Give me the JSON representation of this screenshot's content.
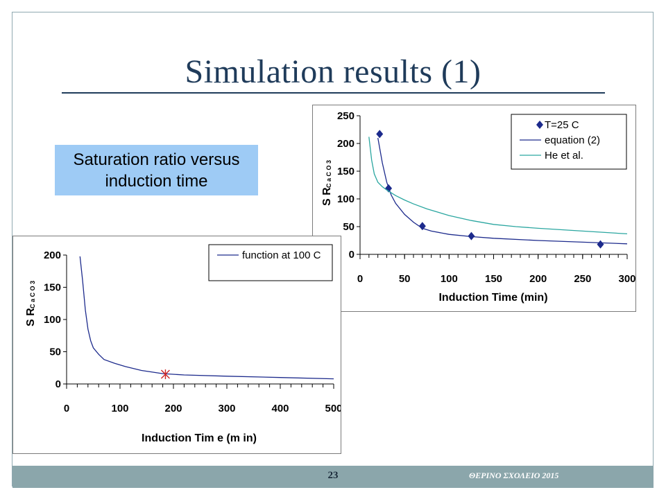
{
  "slide": {
    "title": "Simulation results (1)",
    "caption_line1": "Saturation ratio versus",
    "caption_line2": "induction time",
    "page_number": "23",
    "footer_text": "ΘΕΡΙΝΟ ΣΧΟΛΕΙΟ 2015"
  },
  "colors": {
    "title": "#1f3b5a",
    "caption_bg": "#9ecbf5",
    "footer_bg": "#8ba6ab",
    "series_navy": "#1c2a8c",
    "series_teal": "#2aa6a0",
    "marker_red": "#cc2222"
  },
  "chart_data": [
    {
      "type": "line",
      "xlabel": "Induction Time (min)",
      "ylabel": "S R",
      "ylabel_sub": "C a C O 3",
      "xlim": [
        0,
        300
      ],
      "ylim": [
        0,
        250
      ],
      "xticks": [
        0,
        50,
        100,
        150,
        200,
        250,
        300
      ],
      "yticks": [
        0,
        50,
        100,
        150,
        200,
        250
      ],
      "legend_position": "top-right",
      "series": [
        {
          "name": "T=25 C",
          "style": "diamond-markers",
          "color": "#1c2a8c",
          "points": [
            [
              22,
              217
            ],
            [
              32,
              119
            ],
            [
              70,
              51
            ],
            [
              125,
              33
            ],
            [
              270,
              18
            ]
          ]
        },
        {
          "name": "equation (2)",
          "style": "line",
          "color": "#1c2a8c",
          "points": [
            [
              20,
              210
            ],
            [
              25,
              165
            ],
            [
              30,
              130
            ],
            [
              35,
              107
            ],
            [
              40,
              92
            ],
            [
              50,
              72
            ],
            [
              60,
              58
            ],
            [
              70,
              47
            ],
            [
              80,
              42
            ],
            [
              100,
              36
            ],
            [
              125,
              32
            ],
            [
              150,
              29
            ],
            [
              200,
              25
            ],
            [
              250,
              22
            ],
            [
              300,
              19
            ]
          ]
        },
        {
          "name": "He et al.",
          "style": "line",
          "color": "#2aa6a0",
          "points": [
            [
              10,
              212
            ],
            [
              13,
              170
            ],
            [
              16,
              145
            ],
            [
              20,
              130
            ],
            [
              25,
              122
            ],
            [
              30,
              116
            ],
            [
              40,
              106
            ],
            [
              50,
              98
            ],
            [
              60,
              91
            ],
            [
              75,
              82
            ],
            [
              100,
              70
            ],
            [
              125,
              61
            ],
            [
              150,
              54
            ],
            [
              175,
              50
            ],
            [
              200,
              47
            ],
            [
              250,
              42
            ],
            [
              300,
              37
            ]
          ]
        }
      ]
    },
    {
      "type": "line",
      "xlabel": "Induction Tim e (m in)",
      "ylabel": "S R",
      "ylabel_sub": "C a C O 3",
      "xlim": [
        0,
        500
      ],
      "ylim": [
        0,
        200
      ],
      "xticks": [
        0,
        100,
        200,
        300,
        400,
        500
      ],
      "yticks": [
        0,
        50,
        100,
        150,
        200
      ],
      "legend_position": "top-right",
      "series": [
        {
          "name": "function at 100 C",
          "style": "line",
          "color": "#1c2a8c",
          "points": [
            [
              25,
              198
            ],
            [
              30,
              160
            ],
            [
              35,
              115
            ],
            [
              40,
              85
            ],
            [
              45,
              67
            ],
            [
              50,
              56
            ],
            [
              60,
              46
            ],
            [
              70,
              38
            ],
            [
              90,
              32
            ],
            [
              110,
              27
            ],
            [
              140,
              21
            ],
            [
              180,
              16
            ],
            [
              220,
              14
            ],
            [
              300,
              12
            ],
            [
              400,
              10
            ],
            [
              500,
              8
            ]
          ]
        }
      ],
      "highlight": {
        "x": 185,
        "y": 15,
        "marker": "asterisk",
        "color": "#cc2222"
      }
    }
  ]
}
